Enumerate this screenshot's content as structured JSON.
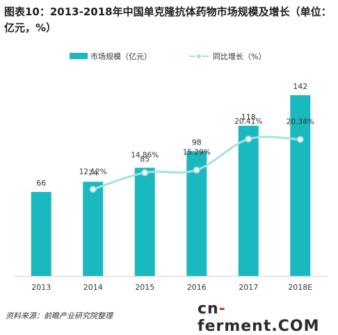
{
  "title": "图表10：2013-2018年中国单克隆抗体药物市场规模及增长（单位：亿元，%）",
  "source": "资料来源：前瞻产业研究院整理",
  "watermark": {
    "pre": "cn",
    "dash": "-",
    "post": "ferment",
    "dot": ".COM"
  },
  "colors": {
    "bar": "#1ab8bf",
    "line": "#a6e0e3",
    "marker": "#ffffff"
  },
  "chart_data": {
    "type": "bar",
    "categories": [
      "2013",
      "2014",
      "2015",
      "2016",
      "2017",
      "2018E"
    ],
    "series": [
      {
        "name": "市场规模（亿元）",
        "type": "bar",
        "values": [
          66,
          74,
          85,
          98,
          118,
          142
        ]
      },
      {
        "name": "同比增长（%）",
        "type": "line",
        "values": [
          null,
          12.12,
          14.86,
          15.29,
          20.41,
          20.34
        ]
      }
    ],
    "bar_labels": [
      "66",
      "74",
      "85",
      "98",
      "118",
      "142"
    ],
    "line_labels": [
      "",
      "12.12%",
      "14.86%",
      "15.29%",
      "20.41%",
      "20.34%"
    ],
    "ylim": [
      0,
      160
    ],
    "y2lim": [
      0,
      25
    ],
    "legend": "top"
  }
}
